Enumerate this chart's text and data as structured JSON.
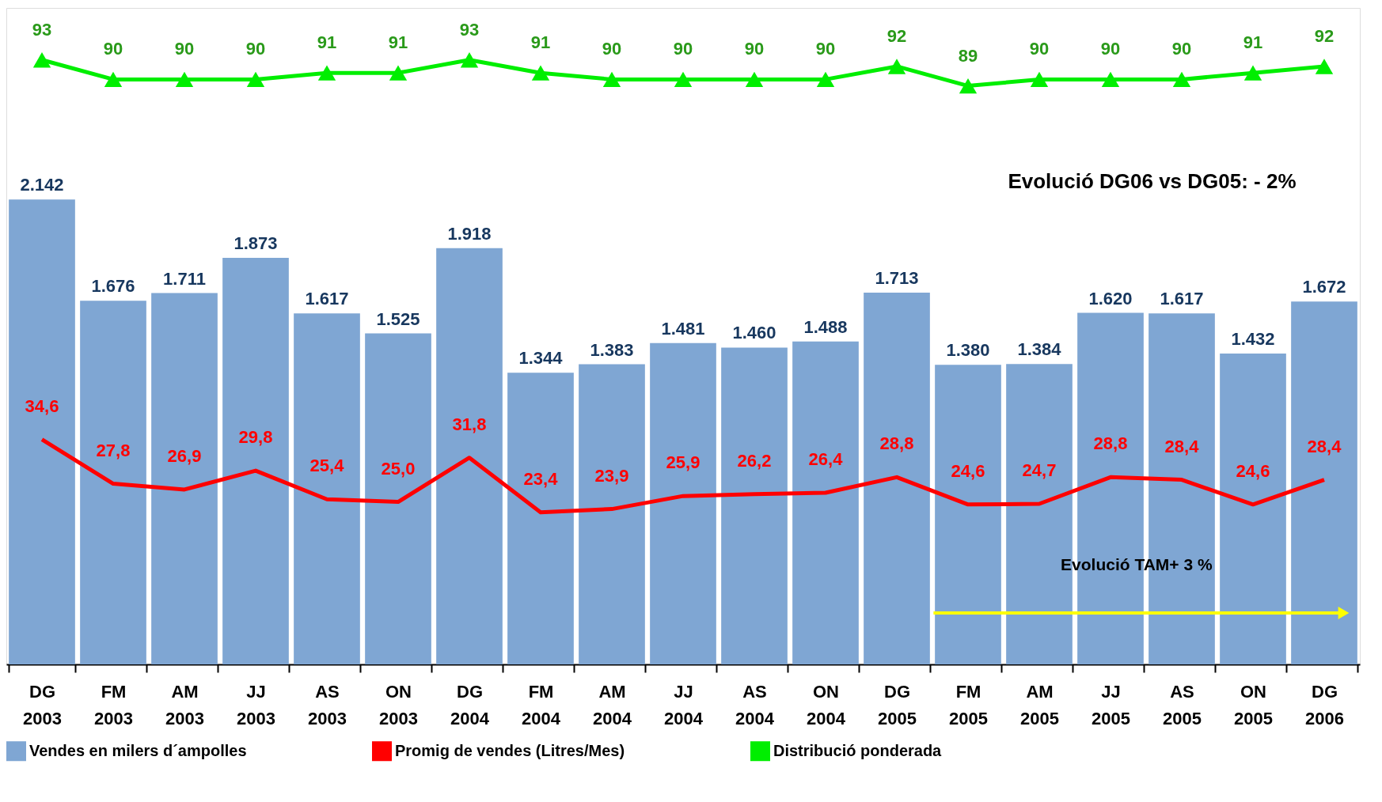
{
  "chart_data": {
    "type": "bar",
    "categories": [
      "DG 2003",
      "FM 2003",
      "AM 2003",
      "JJ 2003",
      "AS 2003",
      "ON 2003",
      "DG 2004",
      "FM 2004",
      "AM 2004",
      "JJ 2004",
      "AS 2004",
      "ON 2004",
      "DG 2005",
      "FM 2005",
      "AM 2005",
      "JJ 2005",
      "AS 2005",
      "ON 2005",
      "DG 2006"
    ],
    "series": [
      {
        "name": "Vendes en milers d´ampolles",
        "color": "#7fa6d3",
        "values": [
          2142,
          1676,
          1711,
          1873,
          1617,
          1525,
          1918,
          1344,
          1383,
          1481,
          1460,
          1488,
          1713,
          1380,
          1384,
          1620,
          1617,
          1432,
          1672
        ],
        "value_labels": [
          "2.142",
          "1.676",
          "1.711",
          "1.873",
          "1.617",
          "1.525",
          "1.918",
          "1.344",
          "1.383",
          "1.481",
          "1.460",
          "1.488",
          "1.713",
          "1.380",
          "1.384",
          "1.620",
          "1.617",
          "1.432",
          "1.672"
        ]
      },
      {
        "name": "Promig de vendes (Litres/Mes)",
        "type": "line",
        "axis": "y2",
        "color": "#ff0000",
        "marker": "none",
        "values": [
          34.6,
          27.8,
          26.9,
          29.8,
          25.4,
          25.0,
          31.8,
          23.4,
          23.9,
          25.9,
          26.2,
          26.4,
          28.8,
          24.6,
          24.7,
          28.8,
          28.4,
          24.6,
          28.4
        ],
        "value_labels": [
          "34,6",
          "27,8",
          "26,9",
          "29,8",
          "25,4",
          "25,0",
          "31,8",
          "23,4",
          "23,9",
          "25,9",
          "26,2",
          "26,4",
          "28,8",
          "24,6",
          "24,7",
          "28,8",
          "28,4",
          "24,6",
          "28,4"
        ]
      },
      {
        "name": "Distribució ponderada",
        "type": "line",
        "axis": "y2",
        "color": "#00ee00",
        "marker": "triangle",
        "values": [
          93,
          90,
          90,
          90,
          91,
          91,
          93,
          91,
          90,
          90,
          90,
          90,
          92,
          89,
          90,
          90,
          90,
          91,
          92
        ],
        "value_labels": [
          "93",
          "90",
          "90",
          "90",
          "91",
          "91",
          "93",
          "91",
          "90",
          "90",
          "90",
          "90",
          "92",
          "89",
          "90",
          "90",
          "90",
          "91",
          "92"
        ]
      }
    ],
    "ylim": [
      0,
      3025
    ],
    "y2lim": [
      0,
      101
    ],
    "tick_labels": "x",
    "grid": false,
    "legend": "bottom",
    "line_style": "solid",
    "annotations": [
      "Evolució DG06 vs DG05: - 2%",
      "Evolució TAM+ 3 %"
    ]
  }
}
